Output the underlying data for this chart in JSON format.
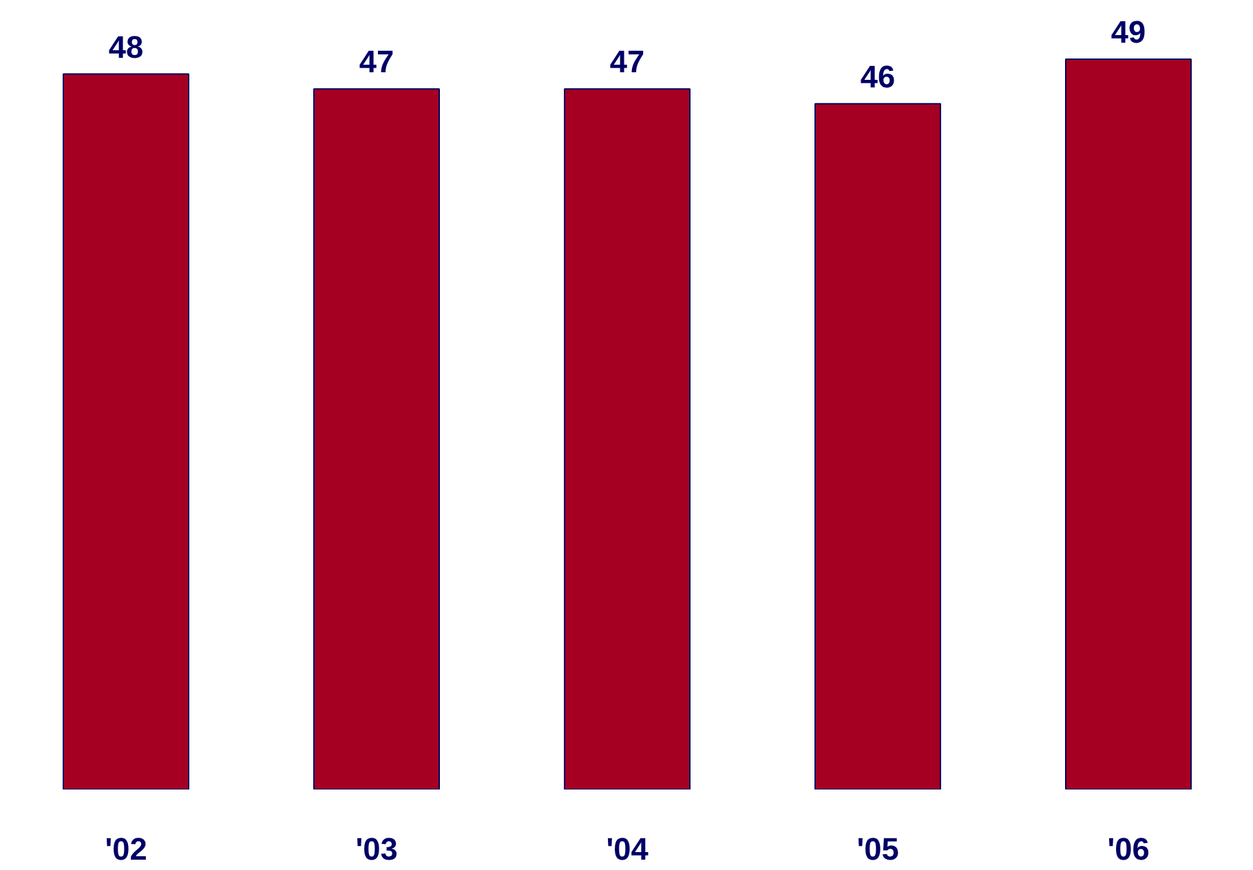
{
  "chart_data": {
    "type": "bar",
    "categories": [
      "'02",
      "'03",
      "'04",
      "'05",
      "'06"
    ],
    "values": [
      48,
      47,
      47,
      46,
      49
    ],
    "color": "#a50021",
    "data_labels": true,
    "grid": false
  }
}
